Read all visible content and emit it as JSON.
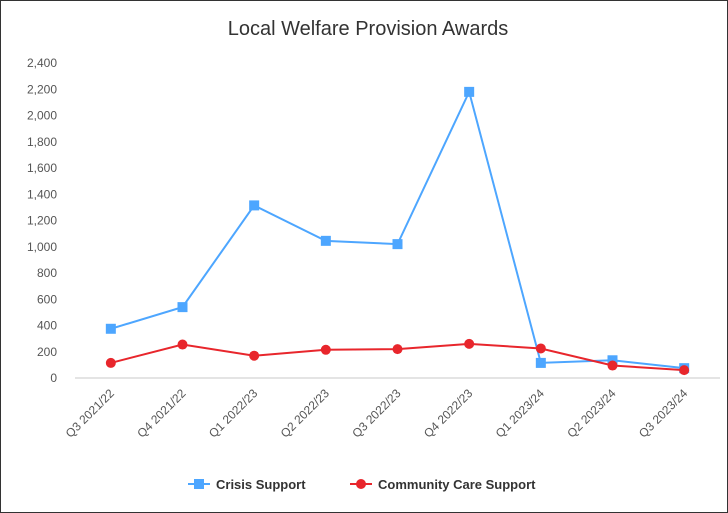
{
  "chart_data": {
    "type": "line",
    "title": "Local Welfare Provision Awards",
    "categories": [
      "Q3 2021/22",
      "Q4 2021/22",
      "Q1 2022/23",
      "Q2 2022/23",
      "Q3 2022/23",
      "Q4 2022/23",
      "Q1 2023/24",
      "Q2 2023/24",
      "Q3 2023/24"
    ],
    "series": [
      {
        "name": "Crisis Support",
        "color": "#4da6ff",
        "marker": "square",
        "values": [
          375,
          540,
          1315,
          1045,
          1020,
          2180,
          115,
          135,
          75
        ]
      },
      {
        "name": "Community Care Support",
        "color": "#e8262c",
        "marker": "circle",
        "values": [
          115,
          255,
          170,
          215,
          220,
          260,
          225,
          95,
          60
        ]
      }
    ],
    "ylim": [
      0,
      2400
    ],
    "yticks": [
      "0",
      "200",
      "400",
      "600",
      "800",
      "1,000",
      "1,200",
      "1,400",
      "1,600",
      "1,800",
      "2,000",
      "2,200",
      "2,400"
    ],
    "xlabel": "",
    "ylabel": "",
    "grid": false,
    "legend_position": "bottom"
  }
}
